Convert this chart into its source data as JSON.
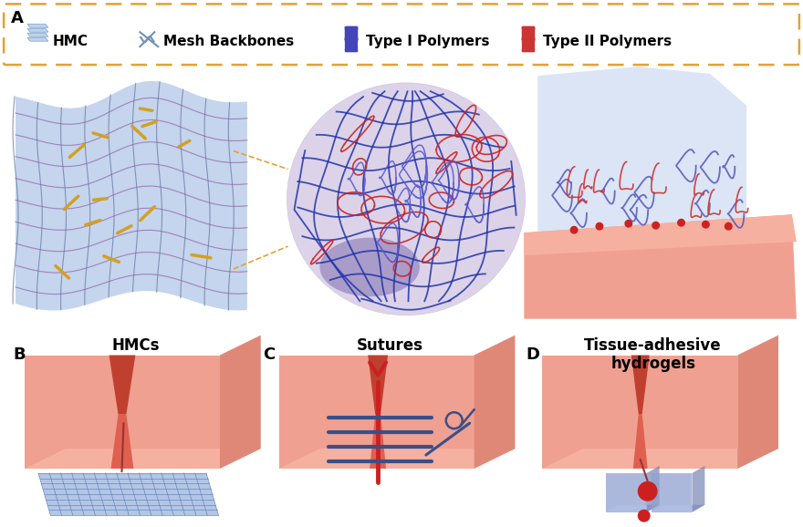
{
  "bg_color": "#ffffff",
  "dashed_rect_color": "#e8a030",
  "skin_light": "#f5b0a0",
  "skin_mid": "#f0a090",
  "skin_dark": "#e08878",
  "skin_darker": "#d07060",
  "wound_color": "#e06050",
  "wound_dark": "#c04030",
  "mesh_face": "#a0b8e0",
  "mesh_line": "#6080b8",
  "hydrogel_blue": "#7890cc",
  "hydrogel_mid": "#90a0d0",
  "hydrogel_light": "#b0c0e8",
  "hydrogel_dark": "#6070a8",
  "suture_dark": "#3a4f88",
  "suture_red": "#cc2020",
  "blue_sheet": "#b0c8e8",
  "blue_sheet2": "#c8d8f0",
  "purple_sphere": "#c0b0d8",
  "purple_dark": "#8070b0",
  "polymer1": "#4444bb",
  "polymer2": "#cc3333",
  "orange_dash": "#d4a020",
  "label_B": "HMCs",
  "label_C": "Sutures",
  "label_D": "Tissue-adhesive\nhydrogels"
}
